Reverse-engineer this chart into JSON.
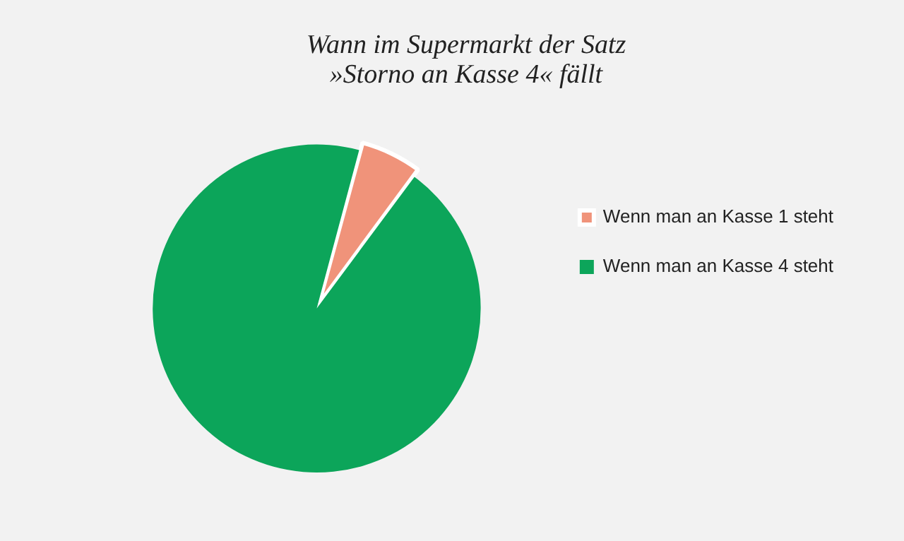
{
  "chart_data": {
    "type": "pie",
    "title": "Wann im Supermarkt der Satz\n»Storno an Kasse 4« fällt",
    "categories": [
      "Wenn man an Kasse 1 steht",
      "Wenn man an Kasse 4 steht"
    ],
    "values": [
      6,
      94
    ],
    "colors": [
      "#f0937a",
      "#0ca55a"
    ],
    "legend": "right"
  }
}
